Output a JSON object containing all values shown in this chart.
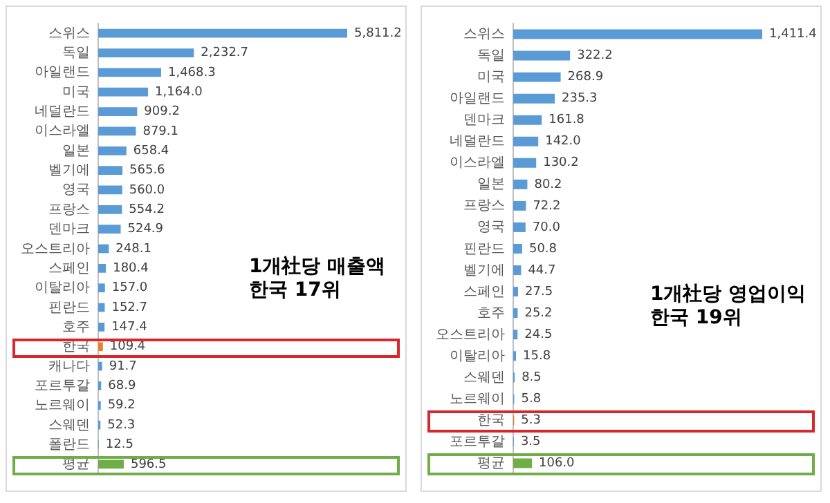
{
  "chart_data": [
    {
      "type": "bar",
      "orientation": "horizontal",
      "categories": [
        "스위스",
        "독일",
        "아일랜드",
        "미국",
        "네덜란드",
        "이스라엘",
        "일본",
        "벨기에",
        "영국",
        "프랑스",
        "덴마크",
        "오스트리아",
        "스페인",
        "이탈리아",
        "핀란드",
        "호주",
        "한국",
        "캐나다",
        "포르투갈",
        "노르웨이",
        "스웨덴",
        "폴란드",
        "평균"
      ],
      "values": [
        5811.2,
        2232.7,
        1468.3,
        1164.0,
        909.2,
        879.1,
        658.4,
        565.6,
        560.0,
        554.2,
        524.9,
        248.1,
        180.4,
        157.0,
        152.7,
        147.4,
        109.4,
        91.7,
        68.9,
        59.2,
        52.3,
        12.5,
        596.5
      ],
      "value_labels": [
        "5,811.2",
        "2,232.7",
        "1,468.3",
        "1,164.0",
        "909.2",
        "879.1",
        "658.4",
        "565.6",
        "560.0",
        "554.2",
        "524.9",
        "248.1",
        "180.4",
        "157.0",
        "152.7",
        "147.4",
        "109.4",
        "91.7",
        "68.9",
        "59.2",
        "52.3",
        "12.5",
        "596.5"
      ],
      "colors": [
        "#5b9bd5",
        "#5b9bd5",
        "#5b9bd5",
        "#5b9bd5",
        "#5b9bd5",
        "#5b9bd5",
        "#5b9bd5",
        "#5b9bd5",
        "#5b9bd5",
        "#5b9bd5",
        "#5b9bd5",
        "#5b9bd5",
        "#5b9bd5",
        "#5b9bd5",
        "#5b9bd5",
        "#5b9bd5",
        "#ed7d31",
        "#5b9bd5",
        "#5b9bd5",
        "#5b9bd5",
        "#5b9bd5",
        "#5b9bd5",
        "#70ad47"
      ],
      "annotations": [
        "1개社당 매출액\n한국 17위"
      ],
      "grid": false,
      "legend": false,
      "tick_labels": "y"
    },
    {
      "type": "bar",
      "orientation": "horizontal",
      "categories": [
        "스위스",
        "독일",
        "미국",
        "아일랜드",
        "덴마크",
        "네덜란드",
        "이스라엘",
        "일본",
        "프랑스",
        "영국",
        "핀란드",
        "벨기에",
        "스페인",
        "호주",
        "오스트리아",
        "이탈리아",
        "스웨덴",
        "노르웨이",
        "한국",
        "포르투갈",
        "평균"
      ],
      "values": [
        1411.4,
        322.2,
        268.9,
        235.3,
        161.8,
        142.0,
        130.2,
        80.2,
        72.2,
        70.0,
        50.8,
        44.7,
        27.5,
        25.2,
        24.5,
        15.8,
        8.5,
        5.8,
        5.3,
        3.5,
        106.0
      ],
      "value_labels": [
        "1,411.4",
        "322.2",
        "268.9",
        "235.3",
        "161.8",
        "142.0",
        "130.2",
        "80.2",
        "72.2",
        "70.0",
        "50.8",
        "44.7",
        "27.5",
        "25.2",
        "24.5",
        "15.8",
        "8.5",
        "5.8",
        "5.3",
        "3.5",
        "106.0"
      ],
      "colors": [
        "#5b9bd5",
        "#5b9bd5",
        "#5b9bd5",
        "#5b9bd5",
        "#5b9bd5",
        "#5b9bd5",
        "#5b9bd5",
        "#5b9bd5",
        "#5b9bd5",
        "#5b9bd5",
        "#5b9bd5",
        "#5b9bd5",
        "#5b9bd5",
        "#5b9bd5",
        "#5b9bd5",
        "#5b9bd5",
        "#5b9bd5",
        "#5b9bd5",
        "#ed7d31",
        "#5b9bd5",
        "#70ad47"
      ],
      "annotations": [
        "1개社당 영업이익\n한국 19위"
      ],
      "grid": false,
      "legend": false,
      "tick_labels": "y"
    }
  ]
}
